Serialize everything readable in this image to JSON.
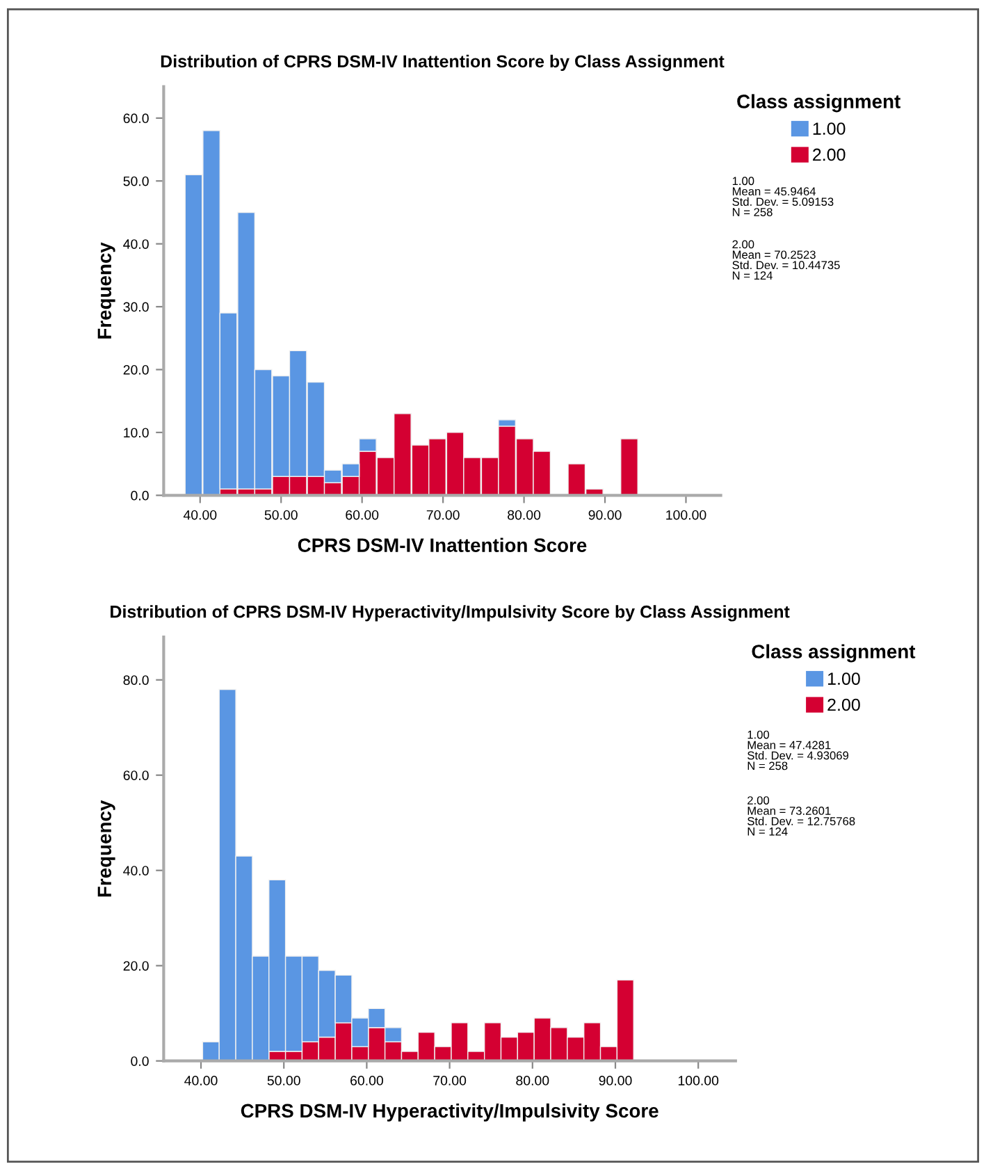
{
  "chart_data": [
    {
      "type": "bar",
      "title": "Distribution of CPRS DSM-IV Inattention Score by Class Assignment",
      "xlabel": "CPRS DSM-IV Inattention Score",
      "ylabel": "Frequency",
      "legend_title": "Class assignment",
      "legend": "right",
      "stacked": true,
      "grid": false,
      "x": [
        39.2,
        41.4,
        43.5,
        45.7,
        47.8,
        50.0,
        52.1,
        54.3,
        56.4,
        58.6,
        60.7,
        62.9,
        65.0,
        67.2,
        69.3,
        71.5,
        73.6,
        75.8,
        77.9,
        80.1,
        82.2,
        84.4,
        86.5,
        88.7,
        90.8,
        93.0
      ],
      "series": [
        {
          "name": "2.00",
          "color": "#d40032",
          "values": [
            0,
            0,
            1,
            1,
            1,
            3,
            3,
            3,
            2,
            3,
            7,
            6,
            13,
            8,
            9,
            10,
            6,
            6,
            11,
            9,
            7,
            0,
            5,
            1,
            0,
            9
          ]
        },
        {
          "name": "1.00",
          "color": "#5a96e3",
          "values": [
            51,
            58,
            28,
            44,
            19,
            16,
            20,
            15,
            2,
            2,
            2,
            0,
            0,
            0,
            0,
            0,
            0,
            0,
            1,
            0,
            0,
            0,
            0,
            0,
            0,
            0
          ]
        }
      ],
      "xlim": [
        35.5,
        104.3
      ],
      "ylim": [
        0,
        65
      ],
      "xticks": [
        {
          "value": 40,
          "label": "40.00"
        },
        {
          "value": 50,
          "label": "50.00"
        },
        {
          "value": 60,
          "label": "60.00"
        },
        {
          "value": 70,
          "label": "70.00"
        },
        {
          "value": 80,
          "label": "80.00"
        },
        {
          "value": 90,
          "label": "90.00"
        },
        {
          "value": 100,
          "label": "100.00"
        }
      ],
      "yticks": [
        {
          "value": 0,
          "label": "0.0"
        },
        {
          "value": 10,
          "label": "10.0"
        },
        {
          "value": 20,
          "label": "20.0"
        },
        {
          "value": 30,
          "label": "30.0"
        },
        {
          "value": 40,
          "label": "40.0"
        },
        {
          "value": 50,
          "label": "50.0"
        },
        {
          "value": 60,
          "label": "60.0"
        }
      ],
      "annotations": [
        "1.00\nMean = 45.9464\nStd. Dev. = 5.09153\nN = 258",
        "2.00\nMean = 70.2523\nStd. Dev. = 10.44735\nN = 124"
      ]
    },
    {
      "type": "bar",
      "title": "Distribution of CPRS DSM-IV Hyperactivity/Impulsivity Score by Class Assignment",
      "xlabel": "CPRS DSM-IV Hyperactivity/Impulsivity Score",
      "ylabel": "Frequency",
      "legend_title": "Class assignment",
      "legend": "right",
      "stacked": true,
      "grid": false,
      "x": [
        41.2,
        43.2,
        45.2,
        47.2,
        49.2,
        51.2,
        53.2,
        55.2,
        57.2,
        59.2,
        61.2,
        63.2,
        65.2,
        67.2,
        69.2,
        71.2,
        73.2,
        75.2,
        77.2,
        79.2,
        81.2,
        83.2,
        85.2,
        87.2,
        89.2,
        91.2
      ],
      "series": [
        {
          "name": "2.00",
          "color": "#d40032",
          "values": [
            0,
            0,
            0,
            0,
            2,
            2,
            4,
            5,
            8,
            3,
            7,
            4,
            2,
            6,
            3,
            8,
            2,
            8,
            5,
            6,
            9,
            7,
            5,
            8,
            3,
            17
          ]
        },
        {
          "name": "1.00",
          "color": "#5a96e3",
          "values": [
            4,
            78,
            43,
            22,
            36,
            20,
            18,
            14,
            10,
            6,
            4,
            3,
            0,
            0,
            0,
            0,
            0,
            0,
            0,
            0,
            0,
            0,
            0,
            0,
            0,
            0
          ]
        }
      ],
      "xlim": [
        35.5,
        104.5
      ],
      "ylim": [
        0,
        89
      ],
      "xticks": [
        {
          "value": 40,
          "label": "40.00"
        },
        {
          "value": 50,
          "label": "50.00"
        },
        {
          "value": 60,
          "label": "60.00"
        },
        {
          "value": 70,
          "label": "70.00"
        },
        {
          "value": 80,
          "label": "80.00"
        },
        {
          "value": 90,
          "label": "90.00"
        },
        {
          "value": 100,
          "label": "100.00"
        }
      ],
      "yticks": [
        {
          "value": 0,
          "label": "0.0"
        },
        {
          "value": 20,
          "label": "20.0"
        },
        {
          "value": 40,
          "label": "40.0"
        },
        {
          "value": 60,
          "label": "60.0"
        },
        {
          "value": 80,
          "label": "80.0"
        }
      ],
      "annotations": [
        "1.00\nMean = 47.4281\nStd. Dev. = 4.93069\nN = 258",
        "2.00\nMean = 73.2601\nStd. Dev. = 12.75768\nN = 124"
      ]
    }
  ]
}
